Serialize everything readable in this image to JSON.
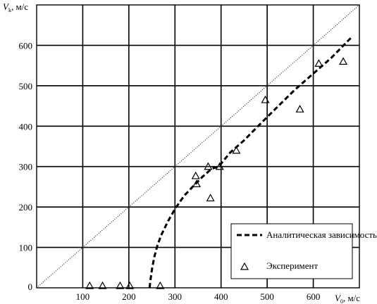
{
  "chart_data": {
    "type": "scatter",
    "xlim": [
      0,
      700
    ],
    "ylim": [
      0,
      700
    ],
    "x_ticks": [
      "100",
      "200",
      "300",
      "400",
      "500",
      "600"
    ],
    "y_ticks": [
      "0",
      "100",
      "200",
      "300",
      "400",
      "500",
      "600"
    ],
    "xlabel": {
      "symbol": "V",
      "subscript": "0",
      "unit": ", м/с"
    },
    "ylabel": {
      "symbol": "V",
      "subscript": "k",
      "unit": ", м/с"
    },
    "grid": true,
    "legend_position": "bottom-right",
    "series": [
      {
        "name": "Аналитическая зависимость",
        "kind": "dashed-line",
        "color": "#000000",
        "x": [
          245,
          247,
          250,
          255,
          262,
          270,
          285,
          300,
          320,
          340,
          360,
          380,
          395,
          420,
          450,
          480,
          520,
          560,
          600,
          640,
          683
        ],
        "y": [
          0,
          20,
          45,
          75,
          105,
          130,
          165,
          195,
          228,
          252,
          275,
          295,
          300,
          335,
          365,
          400,
          445,
          490,
          530,
          570,
          620
        ]
      },
      {
        "name": "Эксперимент",
        "kind": "triangle-markers",
        "color": "#000000",
        "x": [
          115,
          143,
          181,
          202,
          268,
          345,
          347,
          372,
          377,
          397,
          433,
          496,
          571,
          612,
          665
        ],
        "y": [
          5,
          5,
          5,
          5,
          5,
          277,
          257,
          300,
          222,
          300,
          340,
          465,
          442,
          555,
          560
        ]
      },
      {
        "kind": "diagonal",
        "style": "dotted",
        "color": "#000000",
        "x": [
          0,
          700
        ],
        "y": [
          0,
          700
        ]
      }
    ]
  }
}
